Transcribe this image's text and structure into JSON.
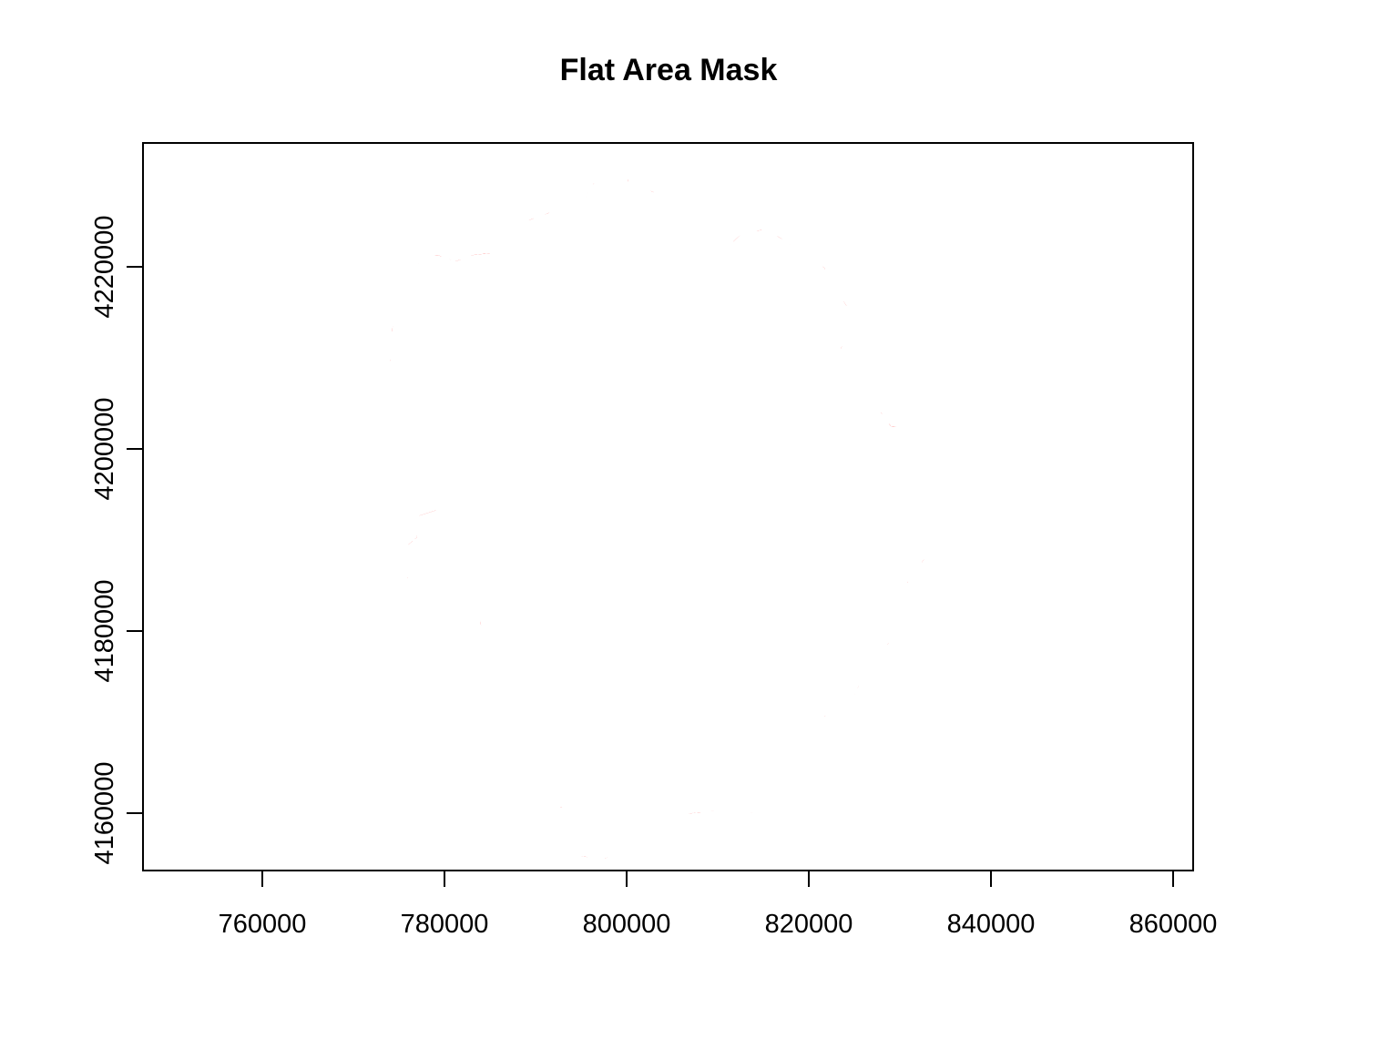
{
  "title": "Flat Area Mask",
  "map": {
    "x_ticks": [
      "760000",
      "780000",
      "800000",
      "820000",
      "840000",
      "860000"
    ],
    "y_ticks": [
      "4160000",
      "4180000",
      "4200000",
      "4220000"
    ],
    "x_range": [
      746800,
      862000
    ],
    "y_range": [
      4154500,
      4234400
    ],
    "boundary_color": "#000000",
    "mask_color": "#ff0000",
    "background_color": "#ffffff"
  }
}
